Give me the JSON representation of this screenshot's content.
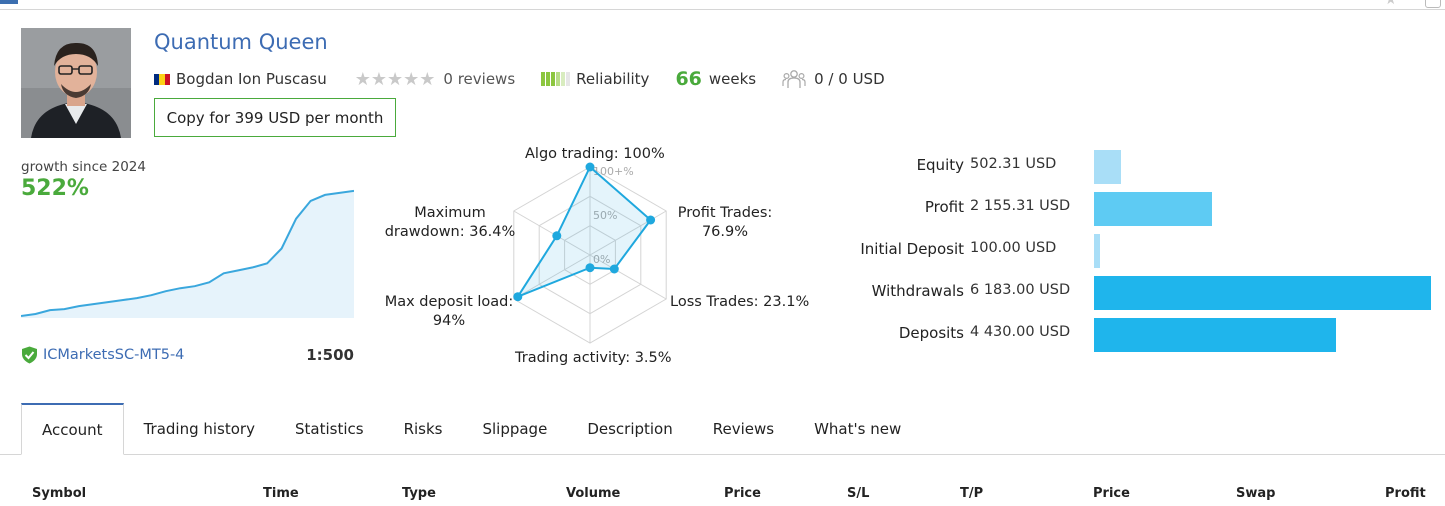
{
  "header": {
    "title": "Quantum Queen",
    "author": "Bogdan Ion Puscasu",
    "reviews_label": "0 reviews",
    "reliability_label": "Reliability",
    "weeks_value": "66",
    "weeks_label": "weeks",
    "subscribers_label": "0 / 0 USD",
    "copy_button_label": "Copy for 399 USD per month",
    "flag_colors": [
      "#002b7f",
      "#fcd116",
      "#ce1126"
    ],
    "reliability_colors": [
      "#8cc63f",
      "#8cc63f",
      "#8cc63f",
      "#b8dd86",
      "#d8ecbf",
      "#e6e6e6"
    ]
  },
  "growth": {
    "label": "growth since 2024",
    "value": "522%",
    "broker": "ICMarketsSC-MT5-4",
    "leverage": "1:500",
    "line_color": "#3aa7dd",
    "fill_color": "#e6f3fb",
    "curve": [
      2,
      4,
      8,
      9,
      12,
      14,
      16,
      18,
      20,
      23,
      27,
      30,
      32,
      36,
      45,
      48,
      51,
      55,
      70,
      100,
      118,
      124,
      126,
      128
    ]
  },
  "radar": {
    "algo": "Algo trading: 100%",
    "profit_trades": "Profit Trades: 76.9%",
    "loss_trades": "Loss Trades: 23.1%",
    "activity": "Trading activity: 3.5%",
    "deposit_load": "Max deposit load: 94%",
    "drawdown": "Maximum drawdown: 36.4%",
    "tick_100": "100+%",
    "tick_50": "50%",
    "tick_0": "0%",
    "values": [
      100,
      76.9,
      23.1,
      3.5,
      94,
      36.4
    ],
    "color": "#1fa8de"
  },
  "balance": {
    "rows": [
      {
        "label": "Equity",
        "value": "502.31 USD",
        "amount": 502.31,
        "color": "#a9def7"
      },
      {
        "label": "Profit",
        "value": "2 155.31 USD",
        "amount": 2155.31,
        "color": "#5ecbf3"
      },
      {
        "label": "Initial Deposit",
        "value": "100.00 USD",
        "amount": 100.0,
        "color": "#a9def7"
      },
      {
        "label": "Withdrawals",
        "value": "6 183.00 USD",
        "amount": 6183.0,
        "color": "#1fb5ec"
      },
      {
        "label": "Deposits",
        "value": "4 430.00 USD",
        "amount": 4430.0,
        "color": "#1fb5ec"
      }
    ]
  },
  "tabs": [
    {
      "label": "Account",
      "active": true
    },
    {
      "label": "Trading history",
      "active": false
    },
    {
      "label": "Statistics",
      "active": false
    },
    {
      "label": "Risks",
      "active": false
    },
    {
      "label": "Slippage",
      "active": false
    },
    {
      "label": "Description",
      "active": false
    },
    {
      "label": "Reviews",
      "active": false
    },
    {
      "label": "What's new",
      "active": false
    }
  ],
  "table": {
    "columns": [
      "Symbol",
      "Time",
      "Type",
      "Volume",
      "Price",
      "S/L",
      "T/P",
      "Price",
      "Swap",
      "Profit"
    ]
  }
}
